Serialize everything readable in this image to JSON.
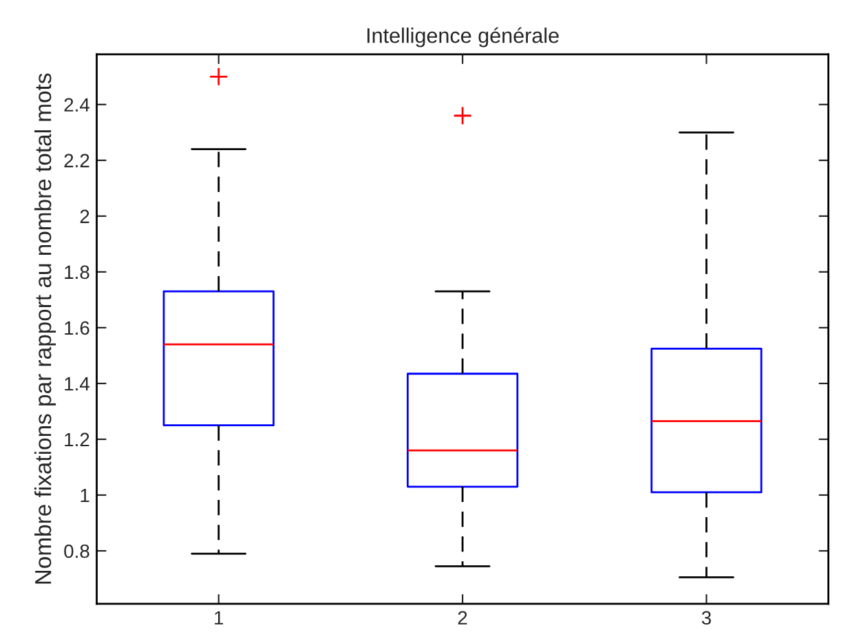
{
  "chart_data": {
    "type": "box",
    "title": "Intelligence générale",
    "ylabel": "Nombre fixations par rapport au nombre total mots",
    "categories": [
      "1",
      "2",
      "3"
    ],
    "boxes": [
      {
        "low": 0.79,
        "q1": 1.25,
        "median": 1.54,
        "q3": 1.73,
        "high": 2.24,
        "outliers": [
          2.5
        ]
      },
      {
        "low": 0.745,
        "q1": 1.03,
        "median": 1.16,
        "q3": 1.435,
        "high": 1.73,
        "outliers": [
          2.36
        ]
      },
      {
        "low": 0.705,
        "q1": 1.01,
        "median": 1.265,
        "q3": 1.525,
        "high": 2.3
      }
    ],
    "color": "#0000ff",
    "ylim": [
      0.61,
      2.58
    ],
    "yticks": [
      0.8,
      1,
      1.2,
      1.4,
      1.6,
      1.8,
      2,
      2.2,
      2.4
    ],
    "grid": false,
    "legend": false
  }
}
